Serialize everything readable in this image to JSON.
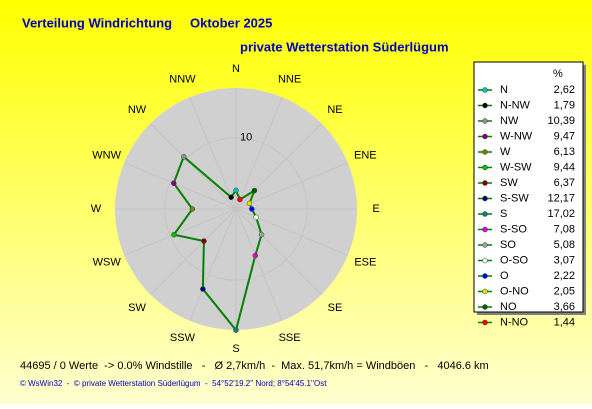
{
  "chart_data": {
    "type": "radar",
    "title": "Verteilung Windrichtung",
    "period": "Oktober 2025",
    "subtitle": "private Wetterstation Süderlügum",
    "categories": [
      "N",
      "NNW",
      "NW",
      "WNW",
      "W",
      "WSW",
      "SW",
      "SSW",
      "S",
      "SSE",
      "SE",
      "ESE",
      "E",
      "ENE",
      "NE",
      "NNE"
    ],
    "direction": "counterclockwise",
    "rlim": [
      0,
      17
    ],
    "rticks": [
      10
    ],
    "series": [
      {
        "color": "#008000",
        "values": [
          2.62,
          1.79,
          10.39,
          9.47,
          6.13,
          9.44,
          6.37,
          12.17,
          17.02,
          7.08,
          5.08,
          3.07,
          2.22,
          2.05,
          3.66,
          1.44
        ],
        "value_labels": [
          "2,62",
          "1,79",
          "10,39",
          "9,47",
          "6,13",
          "9,44",
          "6,37",
          "12,17",
          "17,02",
          "7,08",
          "5,08",
          "3,07",
          "2,22",
          "2,05",
          "3,66",
          "1,44"
        ],
        "point_names": [
          "N",
          "N-NW",
          "NW",
          "W-NW",
          "W",
          "W-SW",
          "SW",
          "S-SW",
          "S",
          "S-SO",
          "SO",
          "O-SO",
          "O",
          "O-NO",
          "NO",
          "N-NO"
        ],
        "point_colors": [
          "#00c0c0",
          "#000000",
          "#909090",
          "#800080",
          "#808000",
          "#00c000",
          "#800000",
          "#000080",
          "#008080",
          "#e000e0",
          "#a0a0a0",
          "#e0ffe0",
          "#0000ff",
          "#e0e000",
          "#006000",
          "#ff0000"
        ]
      }
    ],
    "legend_title": "%",
    "footer": "44695 / 0 Werte  -> 0.0% Windstille   -   Ø 2,7km/h  -  Max. 51,7km/h = Windböen   -   4046.6 km",
    "credit": "© WsWin32  -  © private Wetterstation Süderlügum  -  54°52'19.2'' Nord; 8°54'45.1''Ost"
  }
}
